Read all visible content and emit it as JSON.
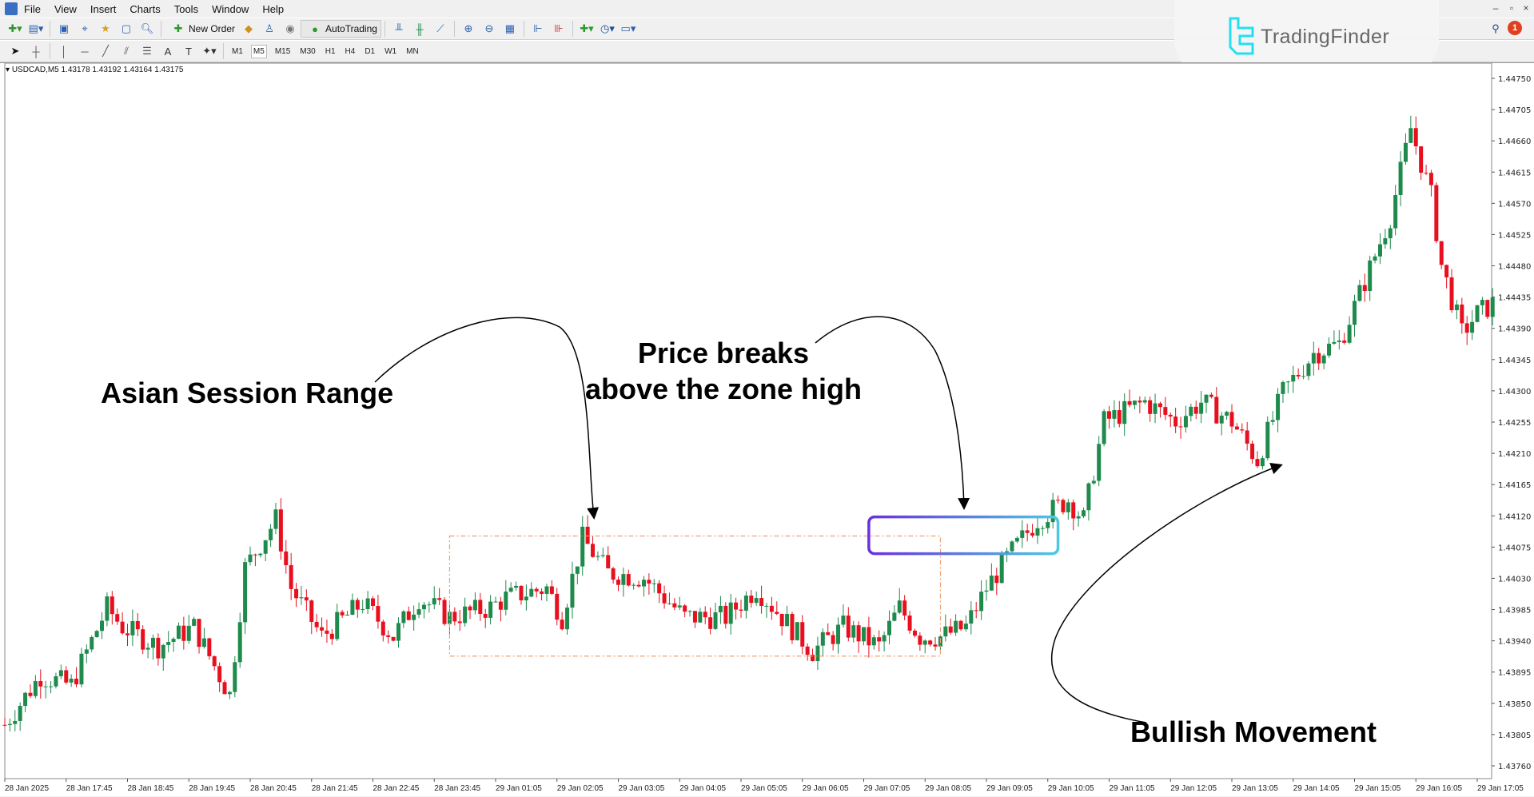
{
  "menu": [
    "File",
    "View",
    "Insert",
    "Charts",
    "Tools",
    "Window",
    "Help"
  ],
  "toolbar": {
    "new_order": "New Order",
    "autotrading": "AutoTrading"
  },
  "timeframes": [
    "M1",
    "M5",
    "M15",
    "M30",
    "H1",
    "H4",
    "D1",
    "W1",
    "MN"
  ],
  "selected_timeframe": "M5",
  "brand": {
    "name": "TradingFinder",
    "color": "#22e0f0"
  },
  "notifications": {
    "count": "1"
  },
  "chart_info": "USDCAD,M5  1.43178 1.43192 1.43164 1.43175",
  "annotations": {
    "asian": "Asian Session Range",
    "breaks_1": "Price breaks",
    "breaks_2": "above the zone high",
    "bullish": "Bullish Movement"
  },
  "chart_data": {
    "type": "candlestick",
    "symbol": "USDCAD",
    "timeframe": "M5",
    "ylim": [
      1.4376,
      1.4475
    ],
    "y_ticks": [
      "1.44750",
      "1.44705",
      "1.44660",
      "1.44615",
      "1.44570",
      "1.44525",
      "1.44480",
      "1.44435",
      "1.44390",
      "1.44345",
      "1.44300",
      "1.44255",
      "1.44210",
      "1.44165",
      "1.44120",
      "1.44075",
      "1.44030",
      "1.43985",
      "1.43940",
      "1.43895",
      "1.43850",
      "1.43805",
      "1.43760"
    ],
    "x_ticks": [
      "28 Jan 2025",
      "28 Jan 17:45",
      "28 Jan 18:45",
      "28 Jan 19:45",
      "28 Jan 20:45",
      "28 Jan 21:45",
      "28 Jan 22:45",
      "28 Jan 23:45",
      "29 Jan 01:05",
      "29 Jan 02:05",
      "29 Jan 03:05",
      "29 Jan 04:05",
      "29 Jan 05:05",
      "29 Jan 06:05",
      "29 Jan 07:05",
      "29 Jan 08:05",
      "29 Jan 09:05",
      "29 Jan 10:05",
      "29 Jan 11:05",
      "29 Jan 12:05",
      "29 Jan 13:05",
      "29 Jan 14:05",
      "29 Jan 15:05",
      "29 Jan 16:05",
      "29 Jan 17:05"
    ],
    "colors": {
      "bull": "#1e8a4c",
      "bear": "#e8101e",
      "asian_box": "#f0a070",
      "breakout_box_start": "#6a2fe0",
      "breakout_box_end": "#4ec8e0"
    },
    "approx_closes": [
      [
        "28 16:45",
        1.43819
      ],
      [
        "28 17:20",
        1.4389
      ],
      [
        "28 17:50",
        1.43876
      ],
      [
        "28 18:25",
        1.43988
      ],
      [
        "28 18:40",
        1.4396
      ],
      [
        "28 19:15",
        1.43932
      ],
      [
        "28 19:50",
        1.4396
      ],
      [
        "28 20:25",
        1.43862
      ],
      [
        "28 20:40",
        1.44045
      ],
      [
        "28 21:10",
        1.44115
      ],
      [
        "28 21:25",
        1.44016
      ],
      [
        "28 21:55",
        1.43946
      ],
      [
        "28 22:35",
        1.43995
      ],
      [
        "28 23:05",
        1.43946
      ],
      [
        "28 23:30",
        1.44002
      ],
      [
        "29 00:00",
        1.43974
      ],
      [
        "29 00:40",
        1.43988
      ],
      [
        "29 00:55",
        1.44002
      ],
      [
        "29 01:35",
        1.44016
      ],
      [
        "29 01:50",
        1.43974
      ],
      [
        "29 02:10",
        1.44087
      ],
      [
        "29 02:35",
        1.44038
      ],
      [
        "29 03:10",
        1.44031
      ],
      [
        "29 03:50",
        1.43974
      ],
      [
        "29 04:30",
        1.43974
      ],
      [
        "29 05:00",
        1.44016
      ],
      [
        "29 05:25",
        1.43974
      ],
      [
        "29 05:55",
        1.43925
      ],
      [
        "29 06:25",
        1.4396
      ],
      [
        "29 07:00",
        1.43932
      ],
      [
        "29 07:20",
        1.43988
      ],
      [
        "29 07:40",
        1.43946
      ],
      [
        "29 08:00",
        1.43946
      ],
      [
        "29 08:25",
        1.4396
      ],
      [
        "29 08:45",
        1.44016
      ],
      [
        "29 09:05",
        1.44059
      ],
      [
        "29 09:35",
        1.44115
      ],
      [
        "29 10:05",
        1.44143
      ],
      [
        "29 10:20",
        1.44115
      ],
      [
        "29 10:40",
        1.44256
      ],
      [
        "29 11:20",
        1.44284
      ],
      [
        "29 11:50",
        1.44256
      ],
      [
        "29 12:15",
        1.44284
      ],
      [
        "29 12:45",
        1.44256
      ],
      [
        "29 13:10",
        1.442
      ],
      [
        "29 13:35",
        1.44298
      ],
      [
        "29 14:05",
        1.44354
      ],
      [
        "29 14:30",
        1.44368
      ],
      [
        "29 14:50",
        1.44439
      ],
      [
        "29 15:20",
        1.44551
      ],
      [
        "29 15:40",
        1.44678
      ],
      [
        "29 16:00",
        1.4458
      ],
      [
        "29 16:10",
        1.44481
      ],
      [
        "29 16:30",
        1.44383
      ],
      [
        "29 16:45",
        1.44411
      ],
      [
        "29 17:00",
        1.44425
      ]
    ],
    "asian_zone": {
      "start": "29 00:00",
      "end": "29 08:00",
      "high": 1.44091,
      "low": 1.43918
    },
    "breakout_zone": {
      "start": "29 06:50",
      "end": "29 09:55",
      "high": 1.44115,
      "low": 1.44069
    }
  }
}
